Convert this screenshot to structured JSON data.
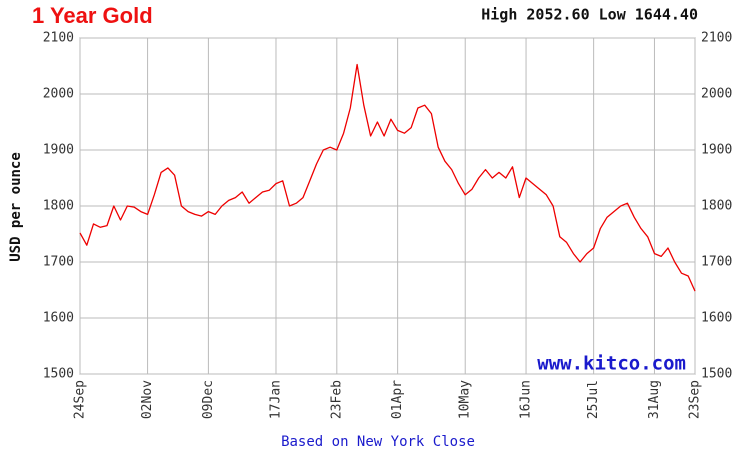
{
  "chart_data": {
    "type": "line",
    "title": "1 Year Gold",
    "subtitle": "High 2052.60 Low 1644.40",
    "ylabel": "USD per ounce",
    "xlabel": "Based on New York Close",
    "annotation": "www.kitco.com",
    "categories": [
      "24Sep",
      null,
      null,
      null,
      null,
      null,
      null,
      null,
      null,
      null,
      "02Nov",
      null,
      null,
      null,
      null,
      null,
      null,
      null,
      null,
      "09Dec",
      null,
      null,
      null,
      null,
      null,
      null,
      null,
      null,
      null,
      "17Jan",
      null,
      null,
      null,
      null,
      null,
      null,
      null,
      null,
      "23Feb",
      null,
      null,
      null,
      null,
      null,
      null,
      null,
      null,
      "01Apr",
      null,
      null,
      null,
      null,
      null,
      null,
      null,
      null,
      null,
      "10May",
      null,
      null,
      null,
      null,
      null,
      null,
      null,
      null,
      "16Jun",
      null,
      null,
      null,
      null,
      null,
      null,
      null,
      null,
      null,
      "25Jul",
      null,
      null,
      null,
      null,
      null,
      null,
      null,
      null,
      "31Aug",
      null,
      null,
      null,
      null,
      null,
      "23Sep"
    ],
    "series": [
      {
        "name": "Gold",
        "color": "#ee0000",
        "values": [
          1752,
          1730,
          1768,
          1762,
          1765,
          1800,
          1775,
          1800,
          1798,
          1790,
          1785,
          1820,
          1860,
          1868,
          1855,
          1800,
          1790,
          1785,
          1782,
          1790,
          1785,
          1800,
          1810,
          1815,
          1825,
          1805,
          1815,
          1825,
          1828,
          1840,
          1845,
          1800,
          1805,
          1815,
          1845,
          1875,
          1900,
          1905,
          1900,
          1930,
          1975,
          2052.6,
          1980,
          1925,
          1950,
          1925,
          1955,
          1935,
          1930,
          1940,
          1975,
          1980,
          1965,
          1905,
          1880,
          1865,
          1840,
          1820,
          1830,
          1850,
          1865,
          1850,
          1860,
          1850,
          1870,
          1815,
          1850,
          1840,
          1830,
          1820,
          1800,
          1745,
          1735,
          1715,
          1700,
          1715,
          1725,
          1760,
          1780,
          1790,
          1800,
          1805,
          1780,
          1760,
          1745,
          1715,
          1710,
          1725,
          1700,
          1680,
          1675,
          1648
        ]
      }
    ],
    "ylim": [
      1500,
      2100
    ],
    "yticks": [
      1500,
      1600,
      1700,
      1800,
      1900,
      2000,
      2100
    ],
    "grid": true
  }
}
